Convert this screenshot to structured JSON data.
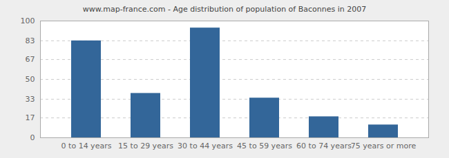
{
  "chart_data": {
    "type": "bar",
    "title": "www.map-france.com - Age distribution of population of Baconnes in 2007",
    "categories": [
      "0 to 14 years",
      "15 to 29 years",
      "30 to 44 years",
      "45 to 59 years",
      "60 to 74 years",
      "75 years or more"
    ],
    "values": [
      83,
      38,
      94,
      34,
      18,
      11
    ],
    "color": "#336699",
    "ylim": [
      0,
      100
    ],
    "yticks": [
      0,
      17,
      33,
      50,
      67,
      83,
      100
    ],
    "grid": true
  }
}
